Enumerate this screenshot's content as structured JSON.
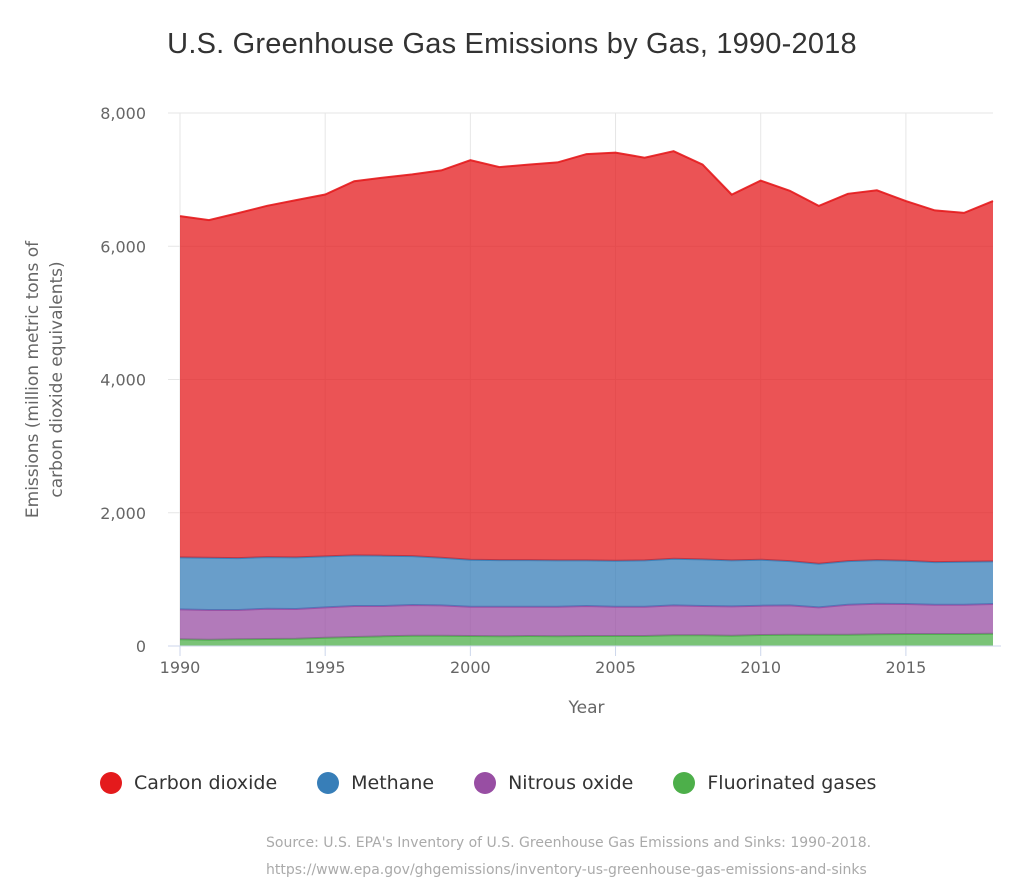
{
  "chart_data": {
    "type": "area",
    "stacked": true,
    "title": "U.S. Greenhouse Gas Emissions by Gas, 1990-2018",
    "xlabel": "Year",
    "ylabel_lines": [
      "Emissions (million metric tons of",
      "carbon dioxide equivalents)"
    ],
    "xlim": [
      1990,
      2018
    ],
    "ylim": [
      0,
      8000
    ],
    "x_ticks": [
      1990,
      1995,
      2000,
      2005,
      2010,
      2015
    ],
    "y_ticks": [
      0,
      2000,
      4000,
      6000,
      8000
    ],
    "y_tick_labels": [
      "0",
      "2,000",
      "4,000",
      "6,000",
      "8,000"
    ],
    "grid": "vertical-x and horizontal-y light",
    "legend_position": "bottom",
    "x": [
      1990,
      1991,
      1992,
      1993,
      1994,
      1995,
      1996,
      1997,
      1998,
      1999,
      2000,
      2001,
      2002,
      2003,
      2004,
      2005,
      2006,
      2007,
      2008,
      2009,
      2010,
      2011,
      2012,
      2013,
      2014,
      2015,
      2016,
      2017,
      2018
    ],
    "series": [
      {
        "name": "Fluorinated gases",
        "color": "#4daf4a",
        "values": [
          100,
          95,
          100,
          105,
          110,
          125,
          135,
          145,
          155,
          155,
          150,
          145,
          150,
          145,
          150,
          150,
          150,
          160,
          160,
          155,
          165,
          170,
          170,
          170,
          175,
          180,
          180,
          180,
          185
        ]
      },
      {
        "name": "Nitrous oxide",
        "color": "#984ea3",
        "values": [
          450,
          445,
          440,
          455,
          445,
          455,
          465,
          455,
          460,
          455,
          440,
          445,
          440,
          445,
          450,
          440,
          440,
          450,
          440,
          440,
          440,
          440,
          410,
          450,
          460,
          450,
          440,
          440,
          445
        ]
      },
      {
        "name": "Methane",
        "color": "#377eb8",
        "values": [
          780,
          785,
          780,
          775,
          775,
          765,
          760,
          755,
          735,
          715,
          705,
          700,
          700,
          695,
          685,
          690,
          695,
          700,
          700,
          690,
          690,
          665,
          655,
          655,
          655,
          650,
          640,
          645,
          640
        ]
      },
      {
        "name": "Carbon dioxide",
        "color": "#e41a1c",
        "values": [
          5123,
          5068,
          5177,
          5272,
          5363,
          5432,
          5617,
          5676,
          5728,
          5813,
          5996,
          5898,
          5935,
          5973,
          6098,
          6125,
          6044,
          6116,
          5926,
          5490,
          5690,
          5558,
          5371,
          5512,
          5550,
          5397,
          5278,
          5235,
          5407
        ]
      }
    ]
  },
  "legend": [
    {
      "label": "Carbon dioxide",
      "color": "#e41a1c"
    },
    {
      "label": "Methane",
      "color": "#377eb8"
    },
    {
      "label": "Nitrous oxide",
      "color": "#984ea3"
    },
    {
      "label": "Fluorinated gases",
      "color": "#4daf4a"
    }
  ],
  "source": {
    "line1": "Source: U.S. EPA's Inventory of U.S. Greenhouse Gas Emissions and Sinks: 1990-2018.",
    "line2": "https://www.epa.gov/ghgemissions/inventory-us-greenhouse-gas-emissions-and-sinks"
  }
}
